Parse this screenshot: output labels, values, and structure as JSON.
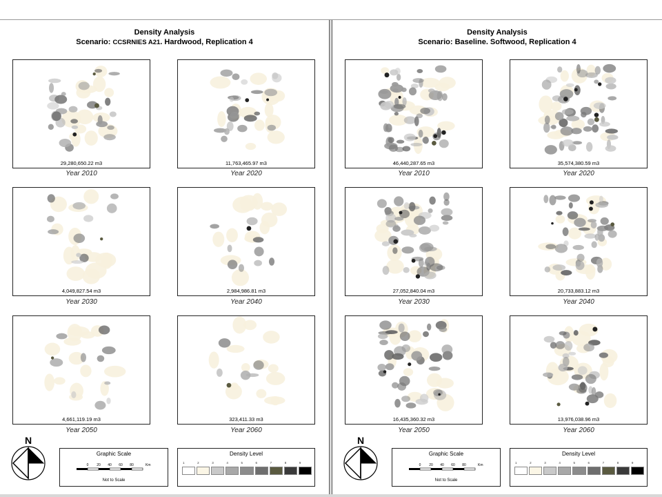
{
  "layouts": [
    {
      "title": "Density Analysis",
      "scenario_prefix": "Scenario: ",
      "scenario_code": "CCSRNIES A21",
      "scenario_suffix": ". Hardwood, Replication 4",
      "panels": [
        {
          "year": "Year 2010",
          "volume": "29,280,650.22 m3",
          "level": 0.42,
          "seed": 11
        },
        {
          "year": "Year 2020",
          "volume": "11,763,465.97 m3",
          "level": 0.3,
          "seed": 23
        },
        {
          "year": "Year 2030",
          "volume": "4,049,827.54 m3",
          "level": 0.12,
          "seed": 37
        },
        {
          "year": "Year 2040",
          "volume": "2,984,986.81 m3",
          "level": 0.09,
          "seed": 41
        },
        {
          "year": "Year 2050",
          "volume": "4,661,119.19 m3",
          "level": 0.11,
          "seed": 53
        },
        {
          "year": "Year 2060",
          "volume": "323,411.33 m3",
          "level": 0.02,
          "seed": 67
        }
      ]
    },
    {
      "title": "Density Analysis",
      "scenario_prefix": "Scenario: ",
      "scenario_code": "",
      "scenario_suffix": "Baseline. Softwood, Replication 4",
      "panels": [
        {
          "year": "Year 2010",
          "volume": "46,440,287.65 m3",
          "level": 0.85,
          "seed": 71
        },
        {
          "year": "Year 2020",
          "volume": "35,574,380.59 m3",
          "level": 0.78,
          "seed": 83
        },
        {
          "year": "Year 2030",
          "volume": "27,052,840.04 m3",
          "level": 0.72,
          "seed": 97
        },
        {
          "year": "Year 2040",
          "volume": "20,733,883.12 m3",
          "level": 0.62,
          "seed": 101
        },
        {
          "year": "Year 2050",
          "volume": "16,435,360.32 m3",
          "level": 0.55,
          "seed": 113
        },
        {
          "year": "Year 2060",
          "volume": "13,976,038.96 m3",
          "level": 0.45,
          "seed": 127
        }
      ]
    }
  ],
  "north_label": "N",
  "graphic_scale": {
    "title": "Graphic Scale",
    "ticks": [
      "0",
      "20",
      "40",
      "60",
      "80"
    ],
    "unit": "Km",
    "note": "Not to Scale"
  },
  "density_legend": {
    "title": "Density Level",
    "levels": [
      "1",
      "2",
      "3",
      "4",
      "5",
      "6",
      "7",
      "8",
      "9"
    ],
    "colors": [
      "#ffffff",
      "#fbf6e6",
      "#c9c9c9",
      "#a8a8a8",
      "#8c8c8c",
      "#6e6e6e",
      "#5a5a40",
      "#3a3a3a",
      "#000000"
    ]
  }
}
